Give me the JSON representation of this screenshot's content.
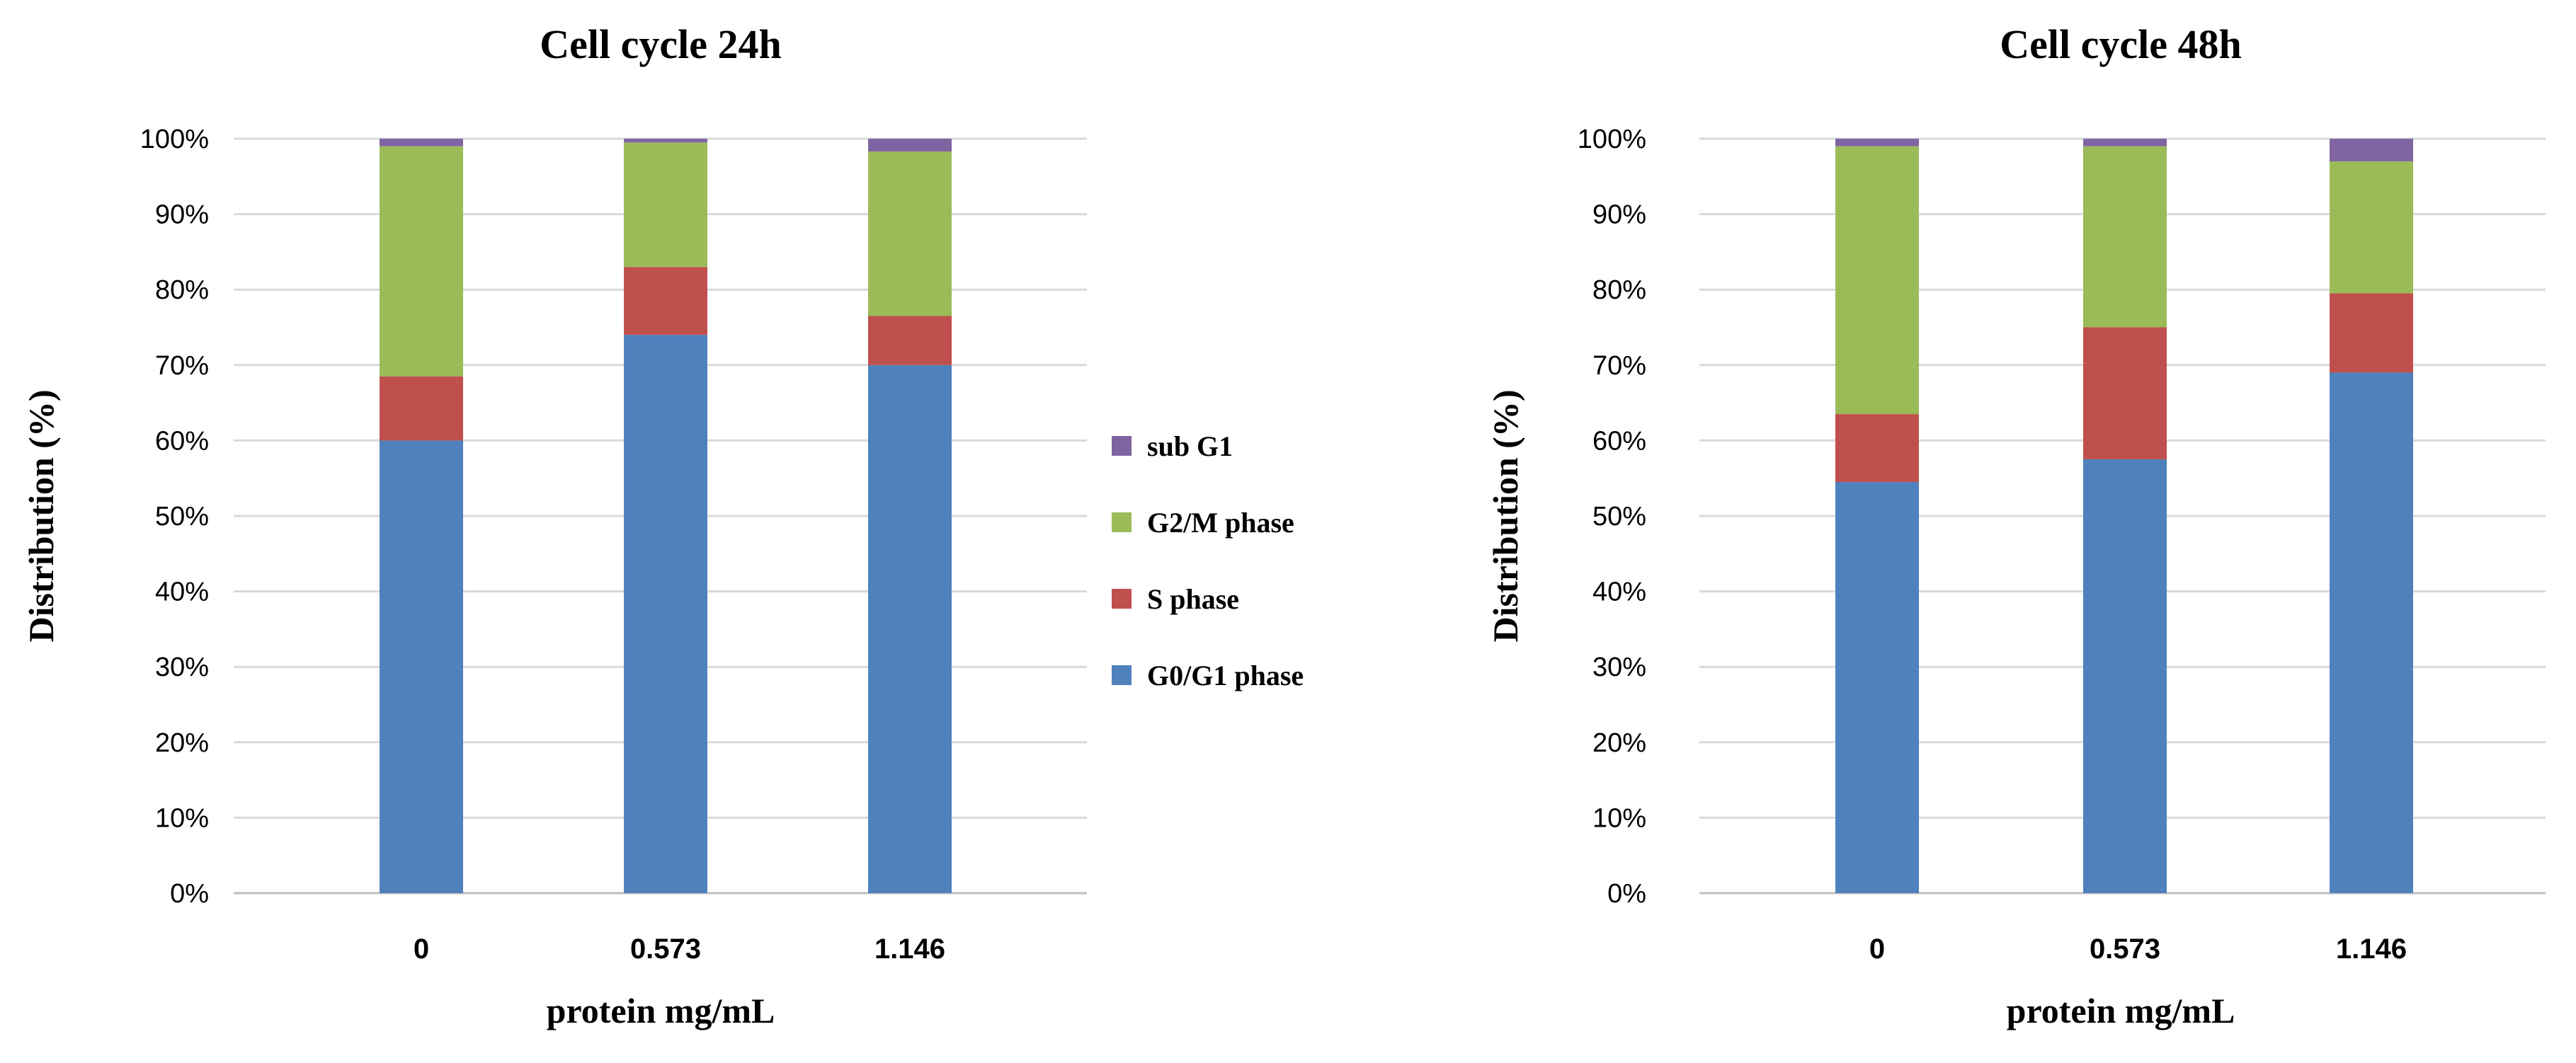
{
  "colors": {
    "G0/G1 phase": "#4f81bd",
    "S phase": "#c0504d",
    "G2/M phase": "#9bbb59",
    "sub G1": "#8064a2"
  },
  "legend": {
    "items": [
      "sub G1",
      "G2/M phase",
      "S phase",
      "G0/G1 phase"
    ]
  },
  "chart_data": [
    {
      "type": "bar",
      "stacked": true,
      "title": "Cell cycle 24h",
      "xlabel": "protein mg/mL",
      "ylabel": "Distribution (%)",
      "ylim": [
        0,
        100
      ],
      "yticks": [
        "0%",
        "10%",
        "20%",
        "30%",
        "40%",
        "50%",
        "60%",
        "70%",
        "80%",
        "90%",
        "100%"
      ],
      "categories": [
        "0",
        "0.573",
        "1.146"
      ],
      "series": [
        {
          "name": "G0/G1 phase",
          "values": [
            60,
            74,
            70
          ]
        },
        {
          "name": "S phase",
          "values": [
            8.5,
            9,
            6.5
          ]
        },
        {
          "name": "G2/M phase",
          "values": [
            30.5,
            16.5,
            21.8
          ]
        },
        {
          "name": "sub G1",
          "values": [
            1,
            0.5,
            1.7
          ]
        }
      ]
    },
    {
      "type": "bar",
      "stacked": true,
      "title": "Cell cycle 48h",
      "xlabel": "protein mg/mL",
      "ylabel": "Distribution (%)",
      "ylim": [
        0,
        100
      ],
      "yticks": [
        "0%",
        "10%",
        "20%",
        "30%",
        "40%",
        "50%",
        "60%",
        "70%",
        "80%",
        "90%",
        "100%"
      ],
      "categories": [
        "0",
        "0.573",
        "1.146"
      ],
      "series": [
        {
          "name": "G0/G1 phase",
          "values": [
            54.5,
            57.5,
            69
          ]
        },
        {
          "name": "S phase",
          "values": [
            9,
            17.5,
            10.5
          ]
        },
        {
          "name": "G2/M phase",
          "values": [
            35.5,
            24,
            17.5
          ]
        },
        {
          "name": "sub G1",
          "values": [
            1,
            1,
            3
          ]
        }
      ]
    }
  ]
}
